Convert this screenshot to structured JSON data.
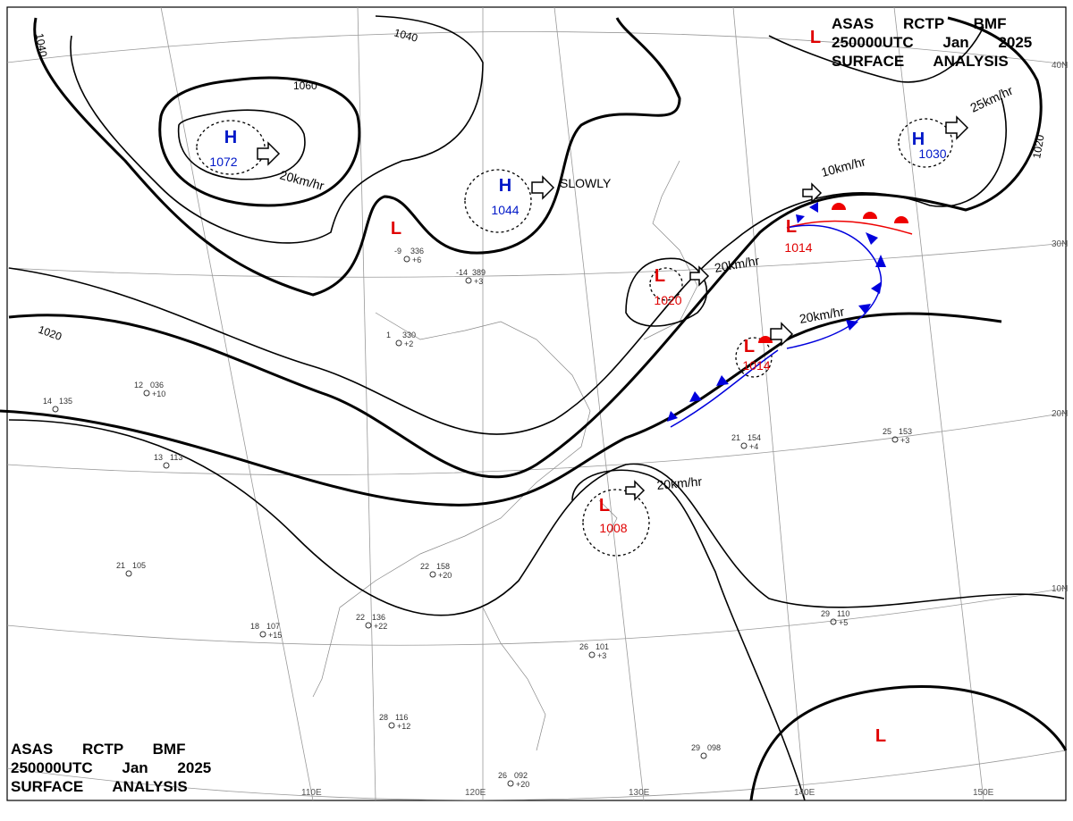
{
  "header": {
    "line1": "ASAS RCTP BMF",
    "line2": "250000UTC Jan 2025",
    "line3": "SURFACE ANALYSIS"
  },
  "centers": [
    {
      "type": "H",
      "value": "1072"
    },
    {
      "type": "H",
      "value": "1044"
    },
    {
      "type": "H",
      "value": "1030"
    },
    {
      "type": "L",
      "value": "1014"
    },
    {
      "type": "L",
      "value": "1020"
    },
    {
      "type": "L",
      "value": "1014"
    },
    {
      "type": "L",
      "value": "1008"
    },
    {
      "type": "L"
    },
    {
      "type": "L"
    },
    {
      "type": "L"
    }
  ],
  "isobar_labels": [
    "1040",
    "1040",
    "1060",
    "1020",
    "1020"
  ],
  "motions": [
    "20km/hr",
    "SLOWLY",
    "10km/hr",
    "25km/hr",
    "20km/hr",
    "20km/hr",
    "20km/hr"
  ],
  "latitudes": [
    "40N",
    "30N",
    "20N",
    "10N"
  ],
  "longitudes": [
    "110E",
    "120E",
    "130E",
    "140E",
    "150E"
  ],
  "stations": [
    {
      "t": "-9",
      "p": "336",
      "d": "+6"
    },
    {
      "t": "-14",
      "p": "389",
      "d": "+3"
    },
    {
      "t": "1",
      "p": "330",
      "d": "+2"
    },
    {
      "t": "12",
      "p": "036",
      "d": "+10"
    },
    {
      "t": "13",
      "p": "113",
      "d": ""
    },
    {
      "t": "14",
      "p": "135",
      "d": ""
    },
    {
      "t": "21",
      "p": "105",
      "d": ""
    },
    {
      "t": "22",
      "p": "158",
      "d": "+20"
    },
    {
      "t": "26",
      "p": "101",
      "d": "+3"
    },
    {
      "t": "28",
      "p": "116",
      "d": "+12"
    },
    {
      "t": "29",
      "p": "110",
      "d": "+5"
    },
    {
      "t": "29",
      "p": "098",
      "d": ""
    },
    {
      "t": "25",
      "p": "153",
      "d": "+3"
    },
    {
      "t": "21",
      "p": "154",
      "d": "+4"
    },
    {
      "t": "18",
      "p": "107",
      "d": "+15"
    },
    {
      "t": "22",
      "p": "136",
      "d": "+22"
    },
    {
      "t": "26",
      "p": "092",
      "d": "+20"
    }
  ]
}
